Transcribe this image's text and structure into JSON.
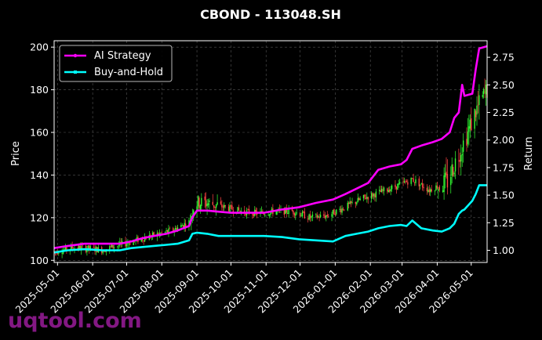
{
  "chart_data": {
    "type": "line",
    "title": "CBOND - 113048.SH",
    "ylabel_left": "Price",
    "ylabel_right": "Return",
    "xlabel": "",
    "x_ticks": [
      "2025-05-01",
      "2025-06-01",
      "2025-07-01",
      "2025-08-01",
      "2025-09-01",
      "2025-10-01",
      "2025-11-01",
      "2025-12-01",
      "2026-01-01",
      "2026-02-01",
      "2026-03-01",
      "2026-04-01",
      "2026-05-01"
    ],
    "x_range": [
      "2025-04-28",
      "2026-05-15"
    ],
    "y_left_ticks": [
      100,
      120,
      140,
      160,
      180,
      200
    ],
    "y_left_range": [
      99,
      203
    ],
    "y_right_ticks": [
      1.0,
      1.25,
      1.5,
      1.75,
      2.0,
      2.25,
      2.5,
      2.75
    ],
    "y_right_range": [
      0.89,
      2.9
    ],
    "grid": true,
    "legend_position": "top-left",
    "colors": {
      "ai": "#ff00ff",
      "bh": "#00ffff",
      "up": "#33ff33",
      "down": "#ff4444",
      "grid": "#555555",
      "background": "#000000"
    },
    "series": [
      {
        "name": "AI Strategy",
        "axis": "right",
        "color": "#ff00ff",
        "points": [
          [
            "2025-04-28",
            1.02
          ],
          [
            "2025-05-10",
            1.04
          ],
          [
            "2025-05-25",
            1.06
          ],
          [
            "2025-06-10",
            1.06
          ],
          [
            "2025-06-25",
            1.06
          ],
          [
            "2025-07-05",
            1.08
          ],
          [
            "2025-07-15",
            1.11
          ],
          [
            "2025-07-25",
            1.13
          ],
          [
            "2025-08-05",
            1.15
          ],
          [
            "2025-08-15",
            1.18
          ],
          [
            "2025-08-25",
            1.22
          ],
          [
            "2025-08-28",
            1.3
          ],
          [
            "2025-09-01",
            1.36
          ],
          [
            "2025-09-10",
            1.36
          ],
          [
            "2025-09-20",
            1.35
          ],
          [
            "2025-10-01",
            1.34
          ],
          [
            "2025-10-15",
            1.34
          ],
          [
            "2025-10-30",
            1.34
          ],
          [
            "2025-11-15",
            1.37
          ],
          [
            "2025-11-30",
            1.39
          ],
          [
            "2025-12-15",
            1.43
          ],
          [
            "2025-12-30",
            1.46
          ],
          [
            "2026-01-10",
            1.51
          ],
          [
            "2026-01-20",
            1.56
          ],
          [
            "2026-01-30",
            1.61
          ],
          [
            "2026-02-08",
            1.73
          ],
          [
            "2026-02-18",
            1.76
          ],
          [
            "2026-02-28",
            1.78
          ],
          [
            "2026-03-05",
            1.82
          ],
          [
            "2026-03-10",
            1.92
          ],
          [
            "2026-03-18",
            1.95
          ],
          [
            "2026-03-28",
            1.98
          ],
          [
            "2026-04-05",
            2.01
          ],
          [
            "2026-04-12",
            2.07
          ],
          [
            "2026-04-16",
            2.2
          ],
          [
            "2026-04-20",
            2.25
          ],
          [
            "2026-04-23",
            2.5
          ],
          [
            "2026-04-25",
            2.4
          ],
          [
            "2026-05-02",
            2.42
          ],
          [
            "2026-05-05",
            2.64
          ],
          [
            "2026-05-08",
            2.83
          ],
          [
            "2026-05-15",
            2.85
          ]
        ]
      },
      {
        "name": "Buy-and-Hold",
        "axis": "right",
        "color": "#00ffff",
        "points": [
          [
            "2025-04-28",
            0.98
          ],
          [
            "2025-05-10",
            1.0
          ],
          [
            "2025-05-25",
            1.01
          ],
          [
            "2025-06-10",
            1.0
          ],
          [
            "2025-06-25",
            1.0
          ],
          [
            "2025-07-05",
            1.02
          ],
          [
            "2025-07-15",
            1.03
          ],
          [
            "2025-07-25",
            1.04
          ],
          [
            "2025-08-05",
            1.05
          ],
          [
            "2025-08-15",
            1.06
          ],
          [
            "2025-08-25",
            1.09
          ],
          [
            "2025-08-28",
            1.15
          ],
          [
            "2025-09-01",
            1.16
          ],
          [
            "2025-09-10",
            1.15
          ],
          [
            "2025-09-20",
            1.13
          ],
          [
            "2025-10-01",
            1.13
          ],
          [
            "2025-10-15",
            1.13
          ],
          [
            "2025-10-30",
            1.13
          ],
          [
            "2025-11-15",
            1.12
          ],
          [
            "2025-11-30",
            1.1
          ],
          [
            "2025-12-15",
            1.09
          ],
          [
            "2025-12-30",
            1.08
          ],
          [
            "2026-01-10",
            1.13
          ],
          [
            "2026-01-20",
            1.15
          ],
          [
            "2026-01-30",
            1.17
          ],
          [
            "2026-02-08",
            1.2
          ],
          [
            "2026-02-18",
            1.22
          ],
          [
            "2026-02-28",
            1.23
          ],
          [
            "2026-03-05",
            1.22
          ],
          [
            "2026-03-10",
            1.27
          ],
          [
            "2026-03-18",
            1.2
          ],
          [
            "2026-03-28",
            1.18
          ],
          [
            "2026-04-05",
            1.17
          ],
          [
            "2026-04-12",
            1.2
          ],
          [
            "2026-04-16",
            1.24
          ],
          [
            "2026-04-20",
            1.33
          ],
          [
            "2026-04-23",
            1.36
          ],
          [
            "2026-04-25",
            1.37
          ],
          [
            "2026-05-02",
            1.45
          ],
          [
            "2026-05-05",
            1.51
          ],
          [
            "2026-05-08",
            1.59
          ],
          [
            "2026-05-15",
            1.59
          ]
        ]
      }
    ],
    "price_trend": [
      [
        "2025-04-28",
        104
      ],
      [
        "2025-05-15",
        106
      ],
      [
        "2025-06-10",
        105
      ],
      [
        "2025-07-01",
        108
      ],
      [
        "2025-07-20",
        111
      ],
      [
        "2025-08-10",
        114
      ],
      [
        "2025-08-25",
        118
      ],
      [
        "2025-08-30",
        127
      ],
      [
        "2025-09-10",
        127
      ],
      [
        "2025-09-25",
        125
      ],
      [
        "2025-10-10",
        123
      ],
      [
        "2025-10-25",
        122
      ],
      [
        "2025-11-10",
        123
      ],
      [
        "2025-11-25",
        123
      ],
      [
        "2025-12-10",
        120
      ],
      [
        "2025-12-25",
        121
      ],
      [
        "2026-01-10",
        125
      ],
      [
        "2026-01-25",
        129
      ],
      [
        "2026-02-10",
        132
      ],
      [
        "2026-02-25",
        135
      ],
      [
        "2026-03-10",
        138
      ],
      [
        "2026-03-25",
        133
      ],
      [
        "2026-04-10",
        137
      ],
      [
        "2026-04-20",
        150
      ],
      [
        "2026-04-28",
        160
      ],
      [
        "2026-05-05",
        170
      ],
      [
        "2026-05-15",
        180
      ]
    ]
  },
  "legend": {
    "ai_label": "AI Strategy",
    "bh_label": "Buy-and-Hold"
  },
  "watermark": "uqtool.com"
}
